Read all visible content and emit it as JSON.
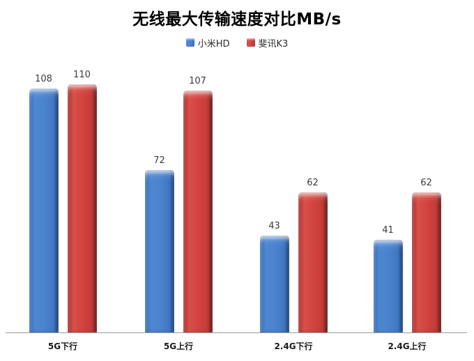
{
  "chart_data": {
    "type": "bar",
    "title": "无线最大传输速度对比MB/s",
    "categories": [
      "5G下行",
      "5G上行",
      "2.4G下行",
      "2.4G上行"
    ],
    "series": [
      {
        "name": "小米HD",
        "color": "#4a82ce",
        "values": [
          108,
          72,
          43,
          41
        ]
      },
      {
        "name": "斐讯K3",
        "color": "#d2423e",
        "values": [
          110,
          107,
          62,
          62
        ]
      }
    ],
    "xlabel": "",
    "ylabel": "",
    "ylim": [
      0,
      120
    ],
    "grid": false,
    "legend_position": "top",
    "data_labels": true
  },
  "colors": {
    "background": "#ffffff",
    "axis_line": "#9a9a9a",
    "value_label": "#3a3a3a",
    "category_label": "#1a1a1a",
    "title": "#000000"
  }
}
